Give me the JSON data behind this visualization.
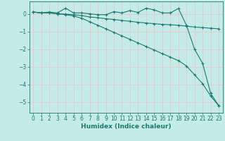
{
  "xlabel": "Humidex (Indice chaleur)",
  "ylabel": "",
  "background_color": "#c4ebe8",
  "grid_color": "#e8c8c8",
  "line_color": "#1a7a6e",
  "xlim": [
    -0.5,
    23.5
  ],
  "ylim": [
    -5.6,
    0.7
  ],
  "yticks": [
    0,
    -1,
    -2,
    -3,
    -4,
    -5
  ],
  "xticks": [
    0,
    1,
    2,
    3,
    4,
    5,
    6,
    7,
    8,
    9,
    10,
    11,
    12,
    13,
    14,
    15,
    16,
    17,
    18,
    19,
    20,
    21,
    22,
    23
  ],
  "line1_x": [
    0,
    1,
    2,
    3,
    4,
    5,
    6,
    7,
    8,
    9,
    10,
    11,
    12,
    13,
    14,
    15,
    16,
    17,
    18,
    19,
    20,
    21,
    22,
    23
  ],
  "line1_y": [
    0.1,
    0.05,
    0.1,
    0.05,
    0.32,
    0.05,
    0.05,
    0.0,
    -0.05,
    -0.05,
    0.12,
    0.05,
    0.18,
    0.08,
    0.32,
    0.22,
    0.05,
    0.05,
    0.3,
    -0.65,
    -2.0,
    -2.8,
    -4.5,
    -5.2
  ],
  "line2_x": [
    0,
    1,
    2,
    3,
    4,
    5,
    6,
    7,
    8,
    9,
    10,
    11,
    12,
    13,
    14,
    15,
    16,
    17,
    18,
    19,
    20,
    21,
    22,
    23
  ],
  "line2_y": [
    0.1,
    0.05,
    0.05,
    0.0,
    -0.02,
    -0.05,
    -0.1,
    -0.18,
    -0.22,
    -0.28,
    -0.32,
    -0.38,
    -0.42,
    -0.48,
    -0.52,
    -0.56,
    -0.6,
    -0.62,
    -0.65,
    -0.7,
    -0.75,
    -0.78,
    -0.82,
    -0.85
  ],
  "line3_x": [
    0,
    1,
    2,
    3,
    4,
    5,
    6,
    7,
    8,
    9,
    10,
    11,
    12,
    13,
    14,
    15,
    16,
    17,
    18,
    19,
    20,
    21,
    22,
    23
  ],
  "line3_y": [
    0.1,
    0.05,
    0.05,
    0.0,
    -0.05,
    -0.12,
    -0.25,
    -0.45,
    -0.65,
    -0.85,
    -1.05,
    -1.25,
    -1.45,
    -1.65,
    -1.85,
    -2.05,
    -2.25,
    -2.45,
    -2.65,
    -2.95,
    -3.45,
    -3.95,
    -4.65,
    -5.2
  ]
}
